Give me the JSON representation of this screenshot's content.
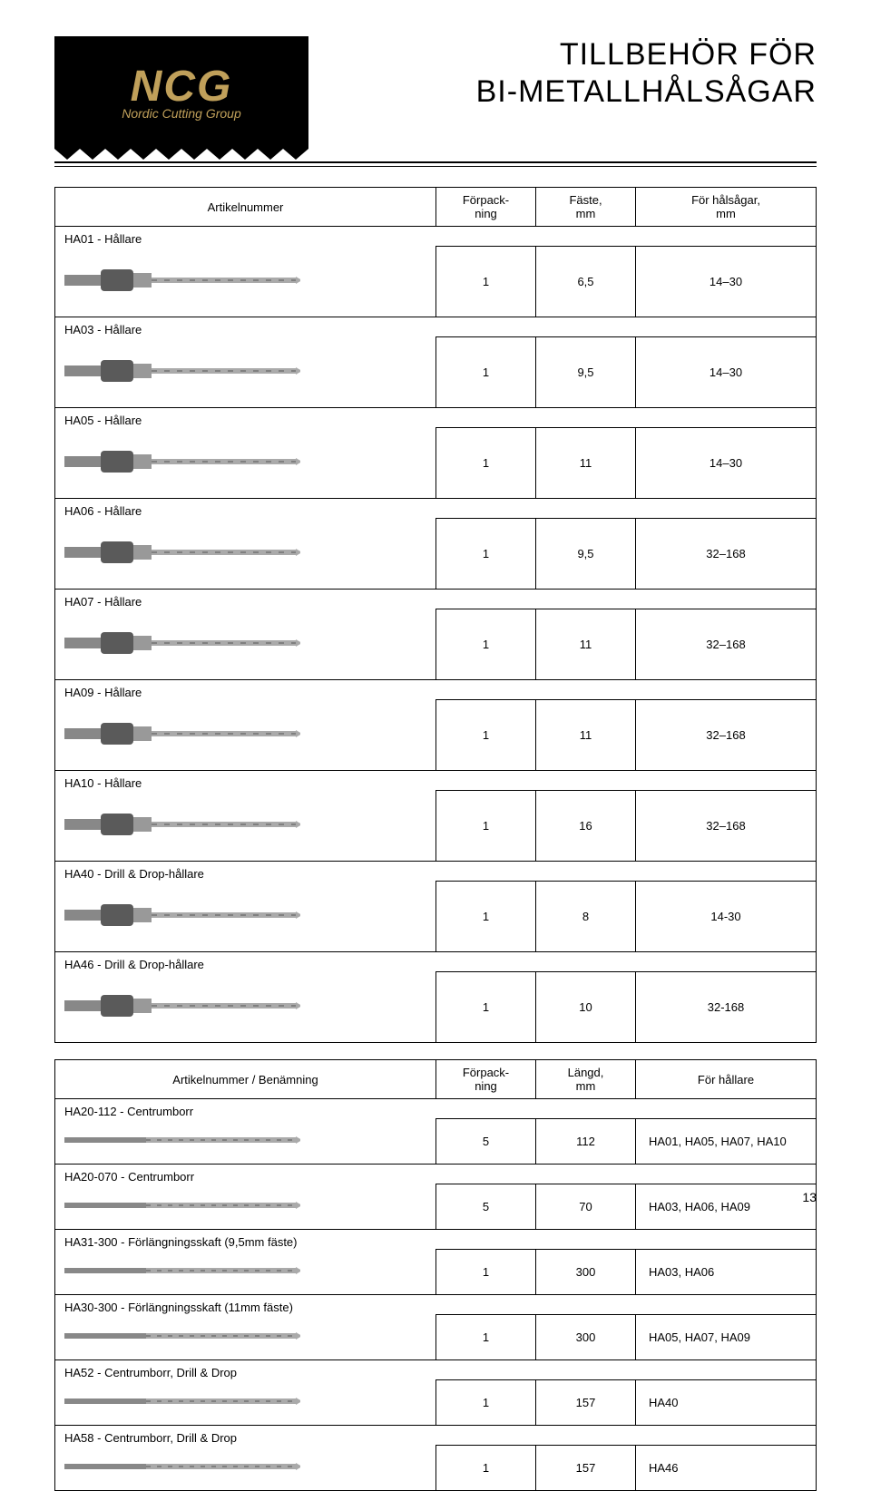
{
  "logo": {
    "main": "NCG",
    "sub": "Nordic Cutting Group"
  },
  "title_line1": "TILLBEHÖR FÖR",
  "title_line2": "BI-METALLHÅLSÅGAR",
  "table1": {
    "headers": [
      "Artikelnummer",
      "Förpack-\nning",
      "Fäste,\nmm",
      "För hålsågar,\nmm"
    ],
    "rows": [
      {
        "label": "HA01 - Hållare",
        "pack": "1",
        "mount": "6,5",
        "range": "14–30"
      },
      {
        "label": "HA03 - Hållare",
        "pack": "1",
        "mount": "9,5",
        "range": "14–30"
      },
      {
        "label": "HA05 - Hållare",
        "pack": "1",
        "mount": "11",
        "range": "14–30"
      },
      {
        "label": "HA06 - Hållare",
        "pack": "1",
        "mount": "9,5",
        "range": "32–168"
      },
      {
        "label": "HA07 - Hållare",
        "pack": "1",
        "mount": "11",
        "range": "32–168"
      },
      {
        "label": "HA09 - Hållare",
        "pack": "1",
        "mount": "11",
        "range": "32–168"
      },
      {
        "label": "HA10 - Hållare",
        "pack": "1",
        "mount": "16",
        "range": "32–168"
      },
      {
        "label": "HA40 - Drill & Drop-hållare",
        "pack": "1",
        "mount": "8",
        "range": "14-30"
      },
      {
        "label": "HA46 - Drill & Drop-hållare",
        "pack": "1",
        "mount": "10",
        "range": "32-168"
      }
    ]
  },
  "table2": {
    "headers": [
      "Artikelnummer / Benämning",
      "Förpack-\nning",
      "Längd,\nmm",
      "För hållare"
    ],
    "rows": [
      {
        "label": "HA20-112 - Centrumborr",
        "pack": "5",
        "len": "112",
        "for": "HA01, HA05, HA07, HA10"
      },
      {
        "label": "HA20-070 - Centrumborr",
        "pack": "5",
        "len": "70",
        "for": "HA03, HA06, HA09"
      },
      {
        "label": "HA31-300 - Förlängningsskaft  (9,5mm fäste)",
        "pack": "1",
        "len": "300",
        "for": "HA03, HA06"
      },
      {
        "label": "HA30-300 - Förlängningsskaft  (11mm fäste)",
        "pack": "1",
        "len": "300",
        "for": "HA05, HA07, HA09"
      },
      {
        "label": "HA52 - Centrumborr, Drill & Drop",
        "pack": "1",
        "len": "157",
        "for": "HA40"
      },
      {
        "label": "HA58 - Centrumborr, Drill & Drop",
        "pack": "1",
        "len": "157",
        "for": "HA46"
      }
    ]
  },
  "page_number": "13",
  "colors": {
    "brand_gold": "#c0a05a",
    "black": "#000000",
    "steel": "#b8b8b8",
    "steel_dark": "#707070"
  }
}
